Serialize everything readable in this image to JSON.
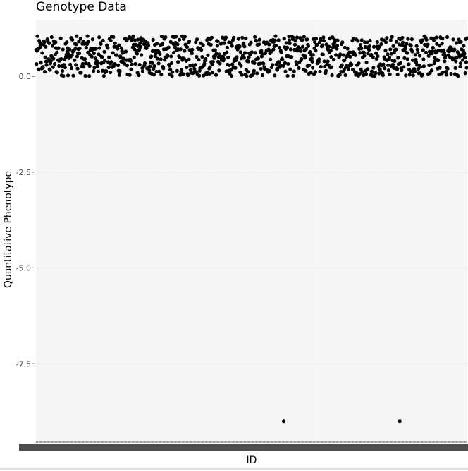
{
  "chart_data": {
    "type": "scatter",
    "title": "Genotype Data",
    "xlabel": "ID",
    "ylabel": "Quantitative Phenotype",
    "ylim": [
      -9.5,
      1.5
    ],
    "y_ticks": [
      0.0,
      -2.5,
      -5.0,
      -7.5
    ],
    "y_tick_labels": [
      "0.0",
      "-2.5",
      "-5.0",
      "-7.5"
    ],
    "x_tick_labels_visible": false,
    "grid": true,
    "point_color": "#000000",
    "n_points": 1000,
    "typical_range": [
      0.0,
      1.05
    ],
    "outliers": [
      {
        "x_index": 574,
        "y": -9.0
      },
      {
        "x_index": 843,
        "y": -9.0
      }
    ]
  }
}
